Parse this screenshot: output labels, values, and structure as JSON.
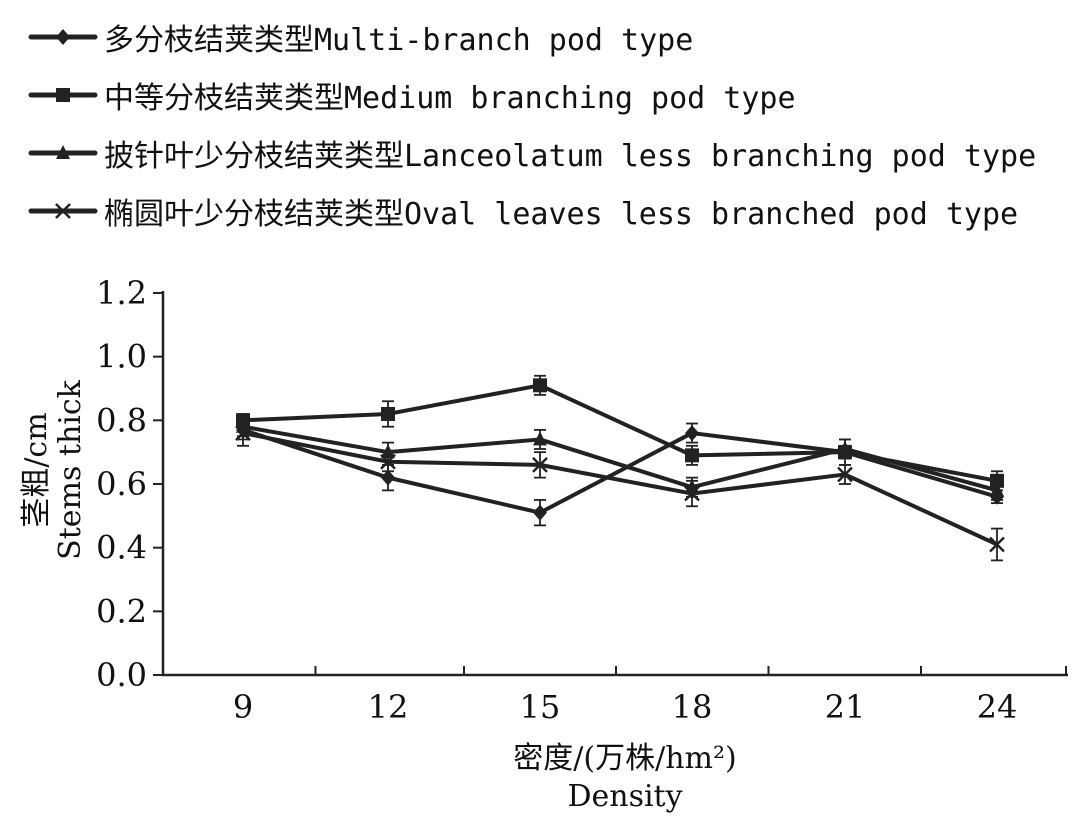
{
  "chart_data": {
    "type": "line",
    "xlabel_cn": "密度/(万株/hm²)",
    "xlabel_en": "Density",
    "ylabel_cn": "茎粗/cm",
    "ylabel_en": "Stems thick",
    "categories": [
      "9",
      "12",
      "15",
      "18",
      "21",
      "24"
    ],
    "y_ticks": [
      "0.0",
      "0.2",
      "0.4",
      "0.6",
      "0.8",
      "1.0",
      "1.2"
    ],
    "ylim": [
      0,
      1.2
    ],
    "legend_position": "top-left",
    "grid": false,
    "series": [
      {
        "name_cn": "多分枝结荚类型",
        "name_en": "Multi-branch pod type",
        "marker": "diamond",
        "values": [
          0.77,
          0.62,
          0.51,
          0.76,
          0.7,
          0.56
        ],
        "errors": [
          0.03,
          0.04,
          0.04,
          0.03,
          0.02,
          0.02
        ]
      },
      {
        "name_cn": "中等分枝结荚类型",
        "name_en": "Medium branching pod type",
        "marker": "square",
        "values": [
          0.8,
          0.82,
          0.91,
          0.69,
          0.7,
          0.61
        ],
        "errors": [
          0.02,
          0.04,
          0.03,
          0.03,
          0.04,
          0.03
        ]
      },
      {
        "name_cn": "披针叶少分枝结荚类型",
        "name_en": "Lanceolatum less branching pod type",
        "marker": "triangle",
        "values": [
          0.78,
          0.7,
          0.74,
          0.59,
          0.71,
          0.58
        ],
        "errors": [
          0.03,
          0.03,
          0.03,
          0.03,
          0.03,
          0.03
        ]
      },
      {
        "name_cn": "椭圆叶少分枝结荚类型",
        "name_en": "Oval leaves less branched pod type",
        "marker": "x",
        "values": [
          0.76,
          0.67,
          0.66,
          0.57,
          0.63,
          0.41
        ],
        "errors": [
          0.04,
          0.03,
          0.04,
          0.04,
          0.03,
          0.05
        ]
      }
    ]
  }
}
